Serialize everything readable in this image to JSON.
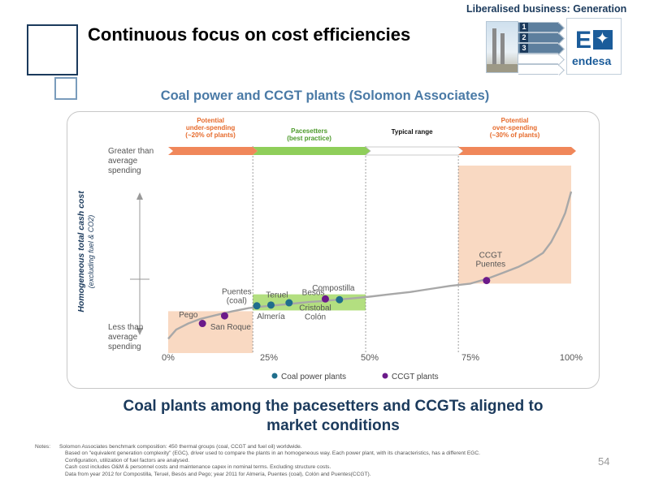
{
  "header": {
    "title": "Continuous focus on cost efficiencies",
    "section": "Liberalised business: Generation",
    "steps": [
      "1",
      "2",
      "3",
      "",
      ""
    ],
    "active_steps": 3,
    "logo_text": "endesa",
    "logo_letter": "E"
  },
  "subtitle": "Coal power and CCGT plants (Solomon Associates)",
  "conclusion_line1": "Coal plants among the pacesetters and CCGTs aligned to",
  "conclusion_line2": "market conditions",
  "chart_data": {
    "type": "line",
    "xlim": [
      0,
      100
    ],
    "x_ticks": [
      {
        "value": 0,
        "label": "0%"
      },
      {
        "value": 25,
        "label": "25%"
      },
      {
        "value": 50,
        "label": "50%"
      },
      {
        "value": 75,
        "label": "75%"
      },
      {
        "value": 100,
        "label": "100%"
      }
    ],
    "ylim": [
      0,
      100
    ],
    "ylabel": "Homogeneous total cash cost",
    "ylabel_sub": "(excluding fuel & CO2)",
    "y_top_label": [
      "Greater than",
      "average",
      "spending"
    ],
    "y_bottom_label": [
      "Less than",
      "average",
      "spending"
    ],
    "grid": false,
    "legend_position": "bottom",
    "curve": {
      "x": [
        0,
        2,
        5,
        8,
        12,
        16,
        20,
        23,
        27,
        31,
        35,
        38,
        42,
        46,
        50,
        55,
        60,
        65,
        70,
        75,
        79,
        83,
        87,
        90,
        93,
        95,
        97,
        98.5,
        100
      ],
      "y": [
        4,
        10,
        14,
        17,
        19.5,
        22,
        24,
        25,
        26,
        27,
        28,
        28.5,
        29.5,
        30.5,
        31.5,
        33,
        34.5,
        36.5,
        38.5,
        40,
        43,
        47,
        51,
        55,
        60,
        67,
        77,
        86,
        100
      ]
    },
    "bands": [
      {
        "label_lines": [
          "Potential",
          "under-spending",
          "(~20% of plants)"
        ],
        "x_from": 0,
        "x_to": 21,
        "color": "#f7c9a8",
        "text_color": "#e66a2b"
      },
      {
        "label_lines": [
          "Pacesetters",
          "(best practice)"
        ],
        "x_from": 21,
        "x_to": 49,
        "color": "#a6d96a",
        "text_color": "#4c9a2a"
      },
      {
        "label_lines": [
          "Typical range"
        ],
        "x_from": 49,
        "x_to": 72,
        "color": "#ffffff",
        "text_color": "#111111"
      },
      {
        "label_lines": [
          "Potential",
          "over-spending",
          "(~30% of plants)"
        ],
        "x_from": 72,
        "x_to": 100,
        "color": "#f7c9a8",
        "text_color": "#e66a2b"
      }
    ],
    "series": [
      {
        "name": "Coal power plants",
        "color": "#1f6e8c",
        "points": [
          {
            "x": 22,
            "y": 25.5
          },
          {
            "x": 25.5,
            "y": 26
          },
          {
            "x": 30,
            "y": 27.5
          },
          {
            "x": 42.5,
            "y": 29.5
          }
        ]
      },
      {
        "name": "CCGT plants",
        "color": "#6b1a8a",
        "points": [
          {
            "x": 8.5,
            "y": 14
          },
          {
            "x": 14,
            "y": 19
          },
          {
            "x": 39,
            "y": 30
          },
          {
            "x": 79,
            "y": 42
          }
        ]
      }
    ],
    "point_labels": [
      {
        "lines": [
          "Pego"
        ],
        "x": 5,
        "y": 18
      },
      {
        "lines": [
          "San Roque"
        ],
        "x": 15.5,
        "y": 10
      },
      {
        "lines": [
          "Puentes",
          "(coal)"
        ],
        "x": 17,
        "y": 33
      },
      {
        "lines": [
          "Almería"
        ],
        "x": 25.5,
        "y": 17
      },
      {
        "lines": [
          "Teruel"
        ],
        "x": 27,
        "y": 31
      },
      {
        "lines": [
          "Besós"
        ],
        "x": 36,
        "y": 32.5
      },
      {
        "lines": [
          "Compostilla"
        ],
        "x": 41,
        "y": 35.5
      },
      {
        "lines": [
          "Cristobal",
          "Colón"
        ],
        "x": 36.5,
        "y": 22.5
      },
      {
        "lines": [
          "CCGT",
          "Puentes"
        ],
        "x": 80,
        "y": 57
      }
    ]
  },
  "notes": {
    "label": "Notes:",
    "lines": [
      "Solomon Associates benchmark composition: 450 thermal groups (coal, CCGT and fuel oil) worldwide.",
      "Based on \"equivalent generation complexity\" (EGC), driver used to compare the plants in an homogeneous way. Each power plant, with its characteristics, has a different EGC.",
      "Configuration, utilization of fuel factors are analysed.",
      "Cash cost includes O&M & personnel costs and maintenance capex in nominal terms. Excluding structure costs.",
      "Data from year 2012 for Compostilla, Teruel, Besós and Pego; year 2011 for Almería, Puentes (coal), Colón and Puentes(CCGT)."
    ]
  },
  "page_number": "54"
}
